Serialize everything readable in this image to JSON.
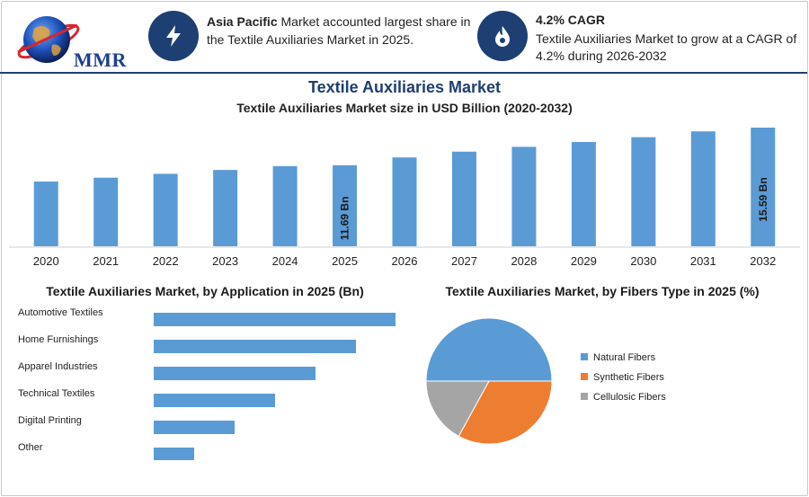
{
  "brand": {
    "logo_text": "MMR"
  },
  "highlights": [
    {
      "icon": "lightning-icon",
      "bold": "Asia Pacific",
      "text": " Market accounted largest share in the Textile Auxiliaries Market in 2025."
    },
    {
      "icon": "flame-drop-icon",
      "title": "4.2% CAGR",
      "text": "Textile Auxiliaries Market to grow at a CAGR of 4.2% during 2026-2032"
    }
  ],
  "colors": {
    "navy": "#1d3f73",
    "bar": "#5b9bd5",
    "orange": "#ed7d31",
    "gray": "#a5a5a5"
  },
  "chart_data": [
    {
      "type": "bar",
      "title": "Textile Auxiliaries Market",
      "subtitle": "Textile Auxiliaries Market size in USD Billion (2020-2032)",
      "categories": [
        "2020",
        "2021",
        "2022",
        "2023",
        "2024",
        "2025",
        "2026",
        "2027",
        "2028",
        "2029",
        "2030",
        "2031",
        "2032"
      ],
      "values": [
        10.0,
        10.4,
        10.8,
        11.2,
        11.6,
        11.69,
        12.5,
        13.1,
        13.6,
        14.1,
        14.6,
        15.2,
        15.59
      ],
      "data_labels": {
        "2025": "11.69 Bn",
        "2032": "15.59 Bn"
      },
      "ylim": [
        0,
        16
      ]
    },
    {
      "type": "bar",
      "orientation": "horizontal",
      "title": "Textile Auxiliaries Market, by Application in 2025 (Bn)",
      "categories": [
        "Automotive Textiles",
        "Home Furnishings",
        "Apparel Industries",
        "Technical Textiles",
        "Digital Printing",
        "Other"
      ],
      "values": [
        6,
        5,
        4,
        3,
        2,
        1
      ],
      "xlim": [
        0,
        6
      ]
    },
    {
      "type": "pie",
      "title": "Textile Auxiliaries Market, by Fibers Type in 2025 (%)",
      "categories": [
        "Natural Fibers",
        "Synthetic Fibers",
        "Cellulosic Fibers"
      ],
      "values": [
        50,
        33,
        17
      ],
      "colors": [
        "#5b9bd5",
        "#ed7d31",
        "#a5a5a5"
      ],
      "legend": "right"
    }
  ]
}
